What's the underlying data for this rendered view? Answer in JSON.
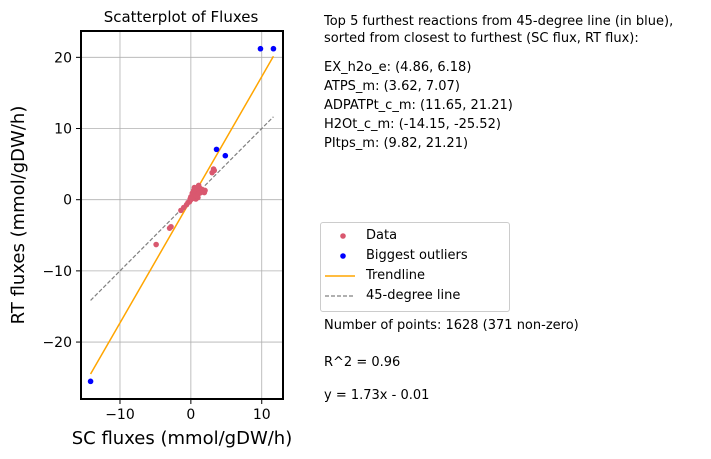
{
  "chart_data": {
    "type": "scatter",
    "title": "Scatterplot of Fluxes",
    "xlabel": "SC fluxes (mmol/gDW/h)",
    "ylabel": "RT fluxes (mmol/gDW/h)",
    "xlim": [
      -15.5,
      13.0
    ],
    "ylim": [
      -28.0,
      23.7
    ],
    "xticks": [
      -10,
      0,
      10
    ],
    "xtick_labels": [
      "−10",
      "0",
      "10"
    ],
    "yticks": [
      -20,
      -10,
      0,
      10,
      20
    ],
    "ytick_labels": [
      "−20",
      "−10",
      "0",
      "10",
      "20"
    ],
    "grid": true,
    "legend_placement": "right, outside plot",
    "colors": {
      "data": "#d9586f",
      "outliers": "#0000ff",
      "trendline": "#ffa500",
      "identity": "#808080"
    },
    "series": [
      {
        "name": "Data",
        "points": [
          [
            -4.9,
            -6.3
          ],
          [
            -3.0,
            -4.0
          ],
          [
            -2.8,
            -3.8
          ],
          [
            -1.4,
            -1.5
          ],
          [
            -1.0,
            -1.1
          ],
          [
            -0.6,
            -0.7
          ],
          [
            -0.4,
            -0.4
          ],
          [
            -0.2,
            -0.3
          ],
          [
            0.0,
            0.0
          ],
          [
            0.1,
            0.2
          ],
          [
            0.2,
            0.4
          ],
          [
            0.3,
            0.6
          ],
          [
            0.4,
            0.8
          ],
          [
            0.5,
            1.0
          ],
          [
            0.6,
            1.2
          ],
          [
            0.7,
            1.4
          ],
          [
            0.8,
            1.6
          ],
          [
            0.9,
            1.5
          ],
          [
            1.0,
            1.8
          ],
          [
            1.1,
            1.3
          ],
          [
            1.2,
            1.1
          ],
          [
            1.3,
            1.6
          ],
          [
            1.4,
            1.0
          ],
          [
            1.5,
            1.2
          ],
          [
            1.6,
            1.4
          ],
          [
            1.7,
            1.1
          ],
          [
            1.8,
            1.3
          ],
          [
            0.3,
            0.2
          ],
          [
            0.6,
            0.4
          ],
          [
            0.9,
            0.7
          ],
          [
            1.2,
            0.9
          ],
          [
            0.2,
            0.9
          ],
          [
            0.4,
            1.3
          ],
          [
            0.7,
            0.1
          ],
          [
            1.0,
            0.3
          ],
          [
            0.5,
            1.7
          ],
          [
            1.1,
            2.0
          ],
          [
            0.8,
            0.5
          ],
          [
            -0.1,
            0.1
          ],
          [
            0.0,
            0.4
          ],
          [
            3.0,
            3.8
          ],
          [
            3.2,
            4.3
          ],
          [
            3.3,
            4.1
          ],
          [
            2.0,
            1.3
          ],
          [
            1.9,
            1.0
          ]
        ]
      },
      {
        "name": "Biggest outliers",
        "points": [
          [
            -14.15,
            -25.52
          ],
          [
            3.62,
            7.07
          ],
          [
            4.86,
            6.18
          ],
          [
            9.82,
            21.21
          ],
          [
            11.65,
            21.21
          ]
        ]
      },
      {
        "name": "Trendline",
        "slope": 1.73,
        "intercept": -0.01,
        "x_range": [
          -14.15,
          11.65
        ]
      },
      {
        "name": "45-degree line",
        "slope": 1.0,
        "intercept": 0.0,
        "x_range": [
          -14.15,
          11.65
        ]
      }
    ]
  },
  "info": {
    "heading_line1": "Top 5 furthest reactions from 45-degree line (in blue),",
    "heading_line2": "sorted from closest to furthest (SC flux, RT flux):",
    "reactions": [
      "EX_h2o_e: (4.86, 6.18)",
      "ATPS_m: (3.62, 7.07)",
      "ADPATPt_c_m: (11.65, 21.21)",
      "H2Ot_c_m: (-14.15, -25.52)",
      "PItps_m: (9.82, 21.21)"
    ],
    "points_count": "Number of points: 1628 (371 non-zero)",
    "r_squared": "R^2 = 0.96",
    "equation": "y = 1.73x - 0.01"
  }
}
